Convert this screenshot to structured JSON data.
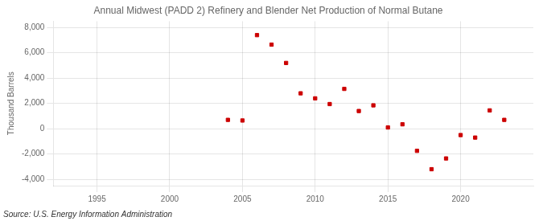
{
  "chart_data": {
    "type": "scatter",
    "title": "Annual Midwest (PADD 2) Refinery and Blender Net Production of Normal Butane",
    "y_label": "Thousand Barrels",
    "annotations": [
      "Source: U.S. Energy Information Administration"
    ],
    "x": [
      2004,
      2005,
      2006,
      2007,
      2008,
      2009,
      2010,
      2011,
      2012,
      2013,
      2014,
      2015,
      2016,
      2017,
      2018,
      2019,
      2020,
      2021,
      2022,
      2023
    ],
    "values": [
      700,
      650,
      7400,
      6650,
      5200,
      2800,
      2400,
      1950,
      3150,
      1400,
      1850,
      100,
      350,
      -1750,
      -3200,
      -2350,
      -500,
      -700,
      1450,
      700
    ],
    "color": "#cc0000",
    "marker": "square",
    "xlim": [
      1992,
      2025
    ],
    "xticks": [
      1995,
      2000,
      2005,
      2010,
      2015,
      2020
    ],
    "ylim": [
      -4500,
      8500
    ],
    "yticks": [
      {
        "value": -4000,
        "label": "-4,000"
      },
      {
        "value": -2000,
        "label": "-2,000"
      },
      0,
      {
        "value": 2000,
        "label": "2,000"
      },
      {
        "value": 4000,
        "label": "4,000"
      },
      {
        "value": 6000,
        "label": "6,000"
      },
      {
        "value": 8000,
        "label": "8,000"
      }
    ],
    "grid": true
  }
}
